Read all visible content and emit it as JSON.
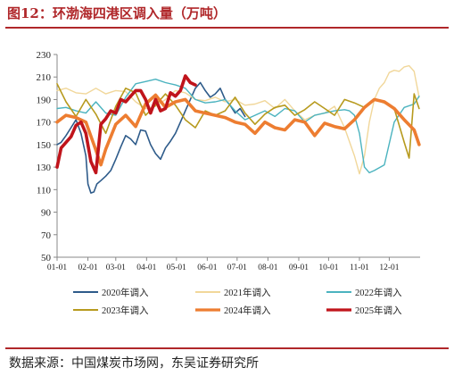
{
  "figure": {
    "title": "图12：环渤海四港区调入量（万吨）",
    "source": "数据来源：中国煤炭市场网，东吴证券研究所"
  },
  "chart_data": {
    "type": "line",
    "title": "环渤海四港区调入量（万吨）",
    "xlabel": "",
    "ylabel": "",
    "x_ticks": [
      "01-01",
      "02-01",
      "03-01",
      "04-01",
      "05-01",
      "06-01",
      "07-01",
      "08-01",
      "09-01",
      "10-01",
      "11-01",
      "12-01"
    ],
    "y_ticks": [
      50,
      70,
      90,
      110,
      130,
      150,
      170,
      190,
      210,
      230
    ],
    "ylim": [
      50,
      230
    ],
    "grid": false,
    "legend": "bottom",
    "series": [
      {
        "name": "2020年调入",
        "color": "#2e5b8a",
        "width": 1.6,
        "x": [
          1,
          5,
          10,
          15,
          20,
          25,
          30,
          32,
          35,
          38,
          41,
          45,
          50,
          55,
          60,
          65,
          70,
          75,
          80,
          85,
          90,
          95,
          100,
          105,
          110,
          115,
          120,
          125,
          130,
          135,
          140,
          145,
          150,
          155,
          160,
          165,
          170,
          175,
          180,
          185,
          190
        ],
        "y": [
          150,
          152,
          158,
          165,
          172,
          160,
          140,
          115,
          107,
          108,
          115,
          118,
          122,
          127,
          137,
          148,
          158,
          155,
          150,
          163,
          162,
          150,
          142,
          137,
          147,
          153,
          160,
          170,
          180,
          190,
          200,
          205,
          198,
          192,
          195,
          200,
          190,
          185,
          178,
          182,
          175
        ]
      },
      {
        "name": "2021年调入",
        "color": "#f1d79a",
        "width": 1.4,
        "x": [
          1,
          10,
          20,
          30,
          40,
          50,
          60,
          70,
          80,
          90,
          100,
          110,
          120,
          130,
          140,
          150,
          160,
          170,
          180,
          190,
          200,
          210,
          220,
          230,
          240,
          250,
          260,
          270,
          280,
          290,
          300,
          305,
          310,
          315,
          320,
          325,
          330,
          335,
          340,
          345,
          350,
          355,
          360,
          365
        ],
        "y": [
          198,
          200,
          196,
          195,
          200,
          195,
          198,
          197,
          188,
          182,
          184,
          190,
          198,
          196,
          190,
          189,
          192,
          188,
          190,
          185,
          186,
          189,
          182,
          190,
          180,
          172,
          176,
          178,
          184,
          165,
          140,
          124,
          140,
          170,
          190,
          200,
          205,
          214,
          216,
          215,
          219,
          220,
          215,
          192
        ]
      },
      {
        "name": "2022年调入",
        "color": "#4bb3bf",
        "width": 1.4,
        "x": [
          1,
          10,
          20,
          30,
          40,
          50,
          60,
          70,
          80,
          90,
          100,
          110,
          120,
          130,
          140,
          150,
          160,
          170,
          180,
          190,
          200,
          210,
          220,
          230,
          240,
          250,
          260,
          270,
          280,
          290,
          295,
          300,
          305,
          310,
          315,
          320,
          330,
          340,
          350,
          360,
          365
        ],
        "y": [
          182,
          183,
          180,
          178,
          188,
          178,
          176,
          192,
          204,
          206,
          208,
          205,
          203,
          200,
          190,
          187,
          188,
          190,
          180,
          172,
          176,
          180,
          175,
          182,
          180,
          170,
          176,
          178,
          180,
          181,
          180,
          176,
          160,
          130,
          125,
          127,
          132,
          170,
          183,
          186,
          193
        ]
      },
      {
        "name": "2023年调入",
        "color": "#b79a1e",
        "width": 1.6,
        "x": [
          1,
          10,
          20,
          30,
          40,
          50,
          60,
          70,
          80,
          90,
          100,
          110,
          120,
          130,
          140,
          150,
          160,
          170,
          180,
          190,
          200,
          210,
          220,
          230,
          240,
          250,
          260,
          270,
          280,
          290,
          300,
          310,
          320,
          330,
          340,
          350,
          355,
          360,
          365
        ],
        "y": [
          204,
          188,
          175,
          190,
          177,
          160,
          184,
          200,
          196,
          176,
          185,
          195,
          185,
          172,
          165,
          180,
          176,
          180,
          192,
          178,
          168,
          177,
          183,
          185,
          176,
          181,
          188,
          182,
          176,
          190,
          187,
          183,
          190,
          187,
          182,
          152,
          138,
          195,
          182
        ]
      },
      {
        "name": "2024年调入",
        "color": "#ed7d31",
        "width": 3.6,
        "x": [
          1,
          10,
          20,
          30,
          40,
          45,
          50,
          60,
          70,
          80,
          90,
          100,
          110,
          120,
          130,
          140,
          150,
          160,
          170,
          180,
          190,
          200,
          210,
          220,
          230,
          240,
          250,
          260,
          270,
          280,
          290,
          300,
          310,
          320,
          330,
          340,
          350,
          360,
          365
        ],
        "y": [
          170,
          176,
          174,
          170,
          145,
          132,
          146,
          168,
          176,
          166,
          186,
          194,
          183,
          188,
          190,
          180,
          178,
          176,
          174,
          170,
          168,
          160,
          170,
          165,
          163,
          172,
          170,
          158,
          169,
          166,
          164,
          172,
          183,
          190,
          188,
          182,
          172,
          163,
          150
        ]
      },
      {
        "name": "2025年调入",
        "color": "#c0141b",
        "width": 3.6,
        "x": [
          1,
          5,
          10,
          15,
          20,
          25,
          30,
          35,
          40,
          45,
          50,
          55,
          60,
          65,
          70,
          75,
          80,
          85,
          90,
          95,
          100,
          105,
          110,
          115,
          120,
          125,
          130,
          135,
          140
        ],
        "y": [
          130,
          147,
          152,
          157,
          167,
          170,
          160,
          135,
          125,
          168,
          173,
          180,
          178,
          190,
          188,
          193,
          198,
          198,
          190,
          178,
          190,
          180,
          182,
          196,
          193,
          198,
          211,
          205,
          203
        ]
      }
    ],
    "x_domain_days": [
      1,
      366
    ]
  }
}
